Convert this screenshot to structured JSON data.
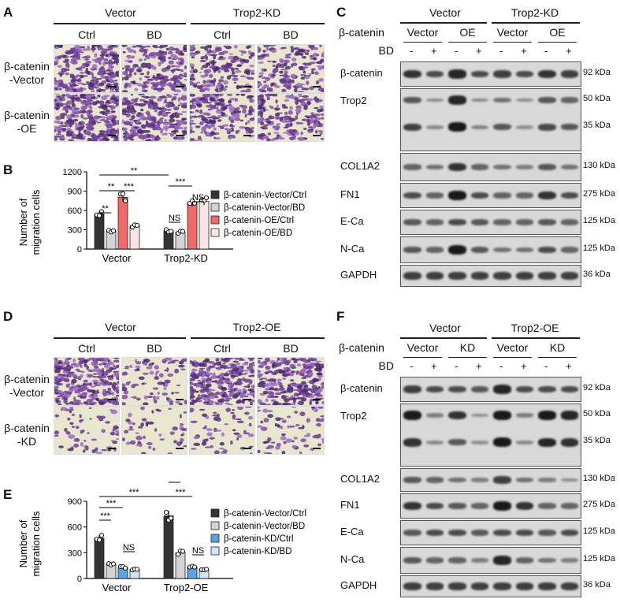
{
  "panels": {
    "A": {
      "letter": "A",
      "groups": [
        "Vector",
        "Trop2-KD"
      ],
      "columns": [
        "Ctrl",
        "BD",
        "Ctrl",
        "BD"
      ],
      "rows": [
        [
          "β-catenin",
          "-Vector"
        ],
        [
          "β-catenin",
          "-OE"
        ]
      ]
    },
    "B": {
      "letter": "B",
      "ylabel": [
        "Number of",
        "migration cells"
      ],
      "sig": [
        "**",
        "**",
        "***",
        "**",
        "***",
        "NS",
        "NS"
      ]
    },
    "C": {
      "letter": "C",
      "groups": [
        "Vector",
        "Trop2-KD"
      ],
      "catenin_row_label": "β-catenin",
      "catenin": [
        "Vector",
        "OE",
        "Vector",
        "OE"
      ],
      "bd_row_label": "BD",
      "bd": [
        "-",
        "+",
        "-",
        "+",
        "-",
        "+",
        "-",
        "+"
      ],
      "blots": [
        {
          "name": "β-catenin",
          "kda": [
            "92 kDa"
          ]
        },
        {
          "name": "Trop2",
          "kda": [
            "50 kDa",
            "35 kDa"
          ]
        },
        {
          "name": "COL1A2",
          "kda": [
            "130 kDa"
          ]
        },
        {
          "name": "FN1",
          "kda": [
            "275 kDa"
          ]
        },
        {
          "name": "E-Ca",
          "kda": [
            "125 kDa"
          ]
        },
        {
          "name": "N-Ca",
          "kda": [
            "125 kDa"
          ]
        },
        {
          "name": "GAPDH",
          "kda": [
            "36 kDa"
          ]
        }
      ]
    },
    "D": {
      "letter": "D",
      "groups": [
        "Vector",
        "Trop2-OE"
      ],
      "columns": [
        "Ctrl",
        "BD",
        "Ctrl",
        "BD"
      ],
      "rows": [
        [
          "β-catenin",
          "-Vector"
        ],
        [
          "β-catenin",
          "-KD"
        ]
      ]
    },
    "E": {
      "letter": "E",
      "ylabel": [
        "Number of",
        "migration cells"
      ],
      "sig": [
        "***",
        "***",
        "***",
        "NS",
        "***",
        "***",
        "NS"
      ]
    },
    "F": {
      "letter": "F",
      "groups": [
        "Vector",
        "Trop2-OE"
      ],
      "catenin_row_label": "β-catenin",
      "catenin": [
        "Vector",
        "KD",
        "Vector",
        "KD"
      ],
      "bd_row_label": "BD",
      "bd": [
        "-",
        "+",
        "-",
        "+",
        "-",
        "+",
        "-",
        "+"
      ],
      "blots": [
        {
          "name": "β-catenin",
          "kda": [
            "92 kDa"
          ]
        },
        {
          "name": "Trop2",
          "kda": [
            "50 kDa",
            "35 kDa"
          ]
        },
        {
          "name": "COL1A2",
          "kda": [
            "130 kDa"
          ]
        },
        {
          "name": "FN1",
          "kda": [
            "275 kDa"
          ]
        },
        {
          "name": "E-Ca",
          "kda": [
            "125 kDa"
          ]
        },
        {
          "name": "N-Ca",
          "kda": [
            "125 kDa"
          ]
        },
        {
          "name": "GAPDH",
          "kda": [
            "36 kDa"
          ]
        }
      ]
    }
  },
  "chart_data": [
    {
      "type": "bar",
      "panel": "B",
      "categories": [
        "Vector",
        "Trop2-KD"
      ],
      "ylabel": "Number of migration cells",
      "ylim": [
        0,
        1200
      ],
      "yticks": [
        0,
        300,
        600,
        900,
        1200
      ],
      "series": [
        {
          "name": "β-catenin-Vector/Ctrl",
          "color": "#333333",
          "values": [
            545,
            285
          ]
        },
        {
          "name": "β-catenin-Vector/BD",
          "color": "#d3d3d3",
          "values": [
            285,
            260
          ]
        },
        {
          "name": "β-catenin-OE/Ctrl",
          "color": "#f06a6a",
          "values": [
            805,
            720
          ]
        },
        {
          "name": "β-catenin-OE/BD",
          "color": "#fde3e3",
          "values": [
            360,
            740
          ]
        }
      ]
    },
    {
      "type": "bar",
      "panel": "E",
      "categories": [
        "Vector",
        "Trop2-OE"
      ],
      "ylabel": "Number of migration cells",
      "ylim": [
        0,
        900
      ],
      "yticks": [
        0,
        300,
        600,
        900
      ],
      "series": [
        {
          "name": "β-catenin-Vector/Ctrl",
          "color": "#333333",
          "values": [
            470,
            730
          ]
        },
        {
          "name": "β-catenin-Vector/BD",
          "color": "#d3d3d3",
          "values": [
            170,
            300
          ]
        },
        {
          "name": "β-catenin-KD/Ctrl",
          "color": "#5ba3e6",
          "values": [
            130,
            135
          ]
        },
        {
          "name": "β-catenin-KD/BD",
          "color": "#cfe3fb",
          "values": [
            105,
            100
          ]
        }
      ]
    }
  ]
}
